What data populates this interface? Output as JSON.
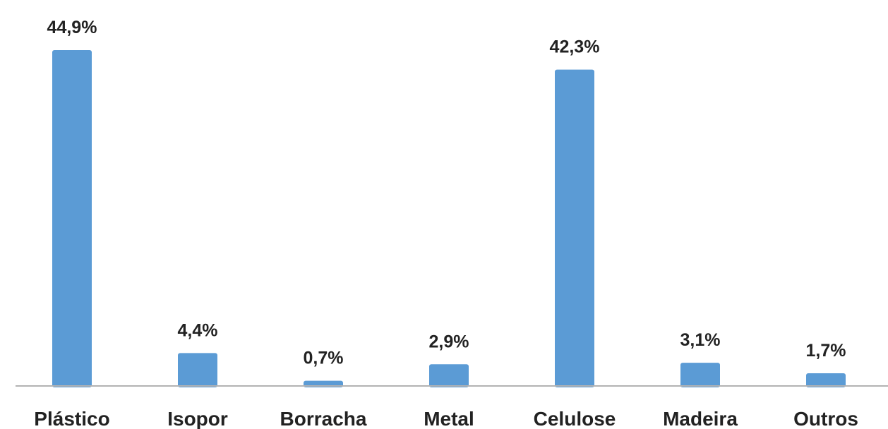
{
  "chart_data": {
    "type": "bar",
    "categories": [
      "Plástico",
      "Isopor",
      "Borracha",
      "Metal",
      "Celulose",
      "Madeira",
      "Outros"
    ],
    "values": [
      44.9,
      4.4,
      0.7,
      2.9,
      42.3,
      3.1,
      1.7
    ],
    "value_labels": [
      "44,9%",
      "4,4%",
      "0,7%",
      "2,9%",
      "42,3%",
      "3,1%",
      "1,7%"
    ],
    "ylim": [
      0,
      44.9
    ],
    "grid": false,
    "legend": "none",
    "colors": {
      "bar": "#5b9bd5",
      "axis": "#b3b3b3",
      "text": "#222222"
    }
  }
}
